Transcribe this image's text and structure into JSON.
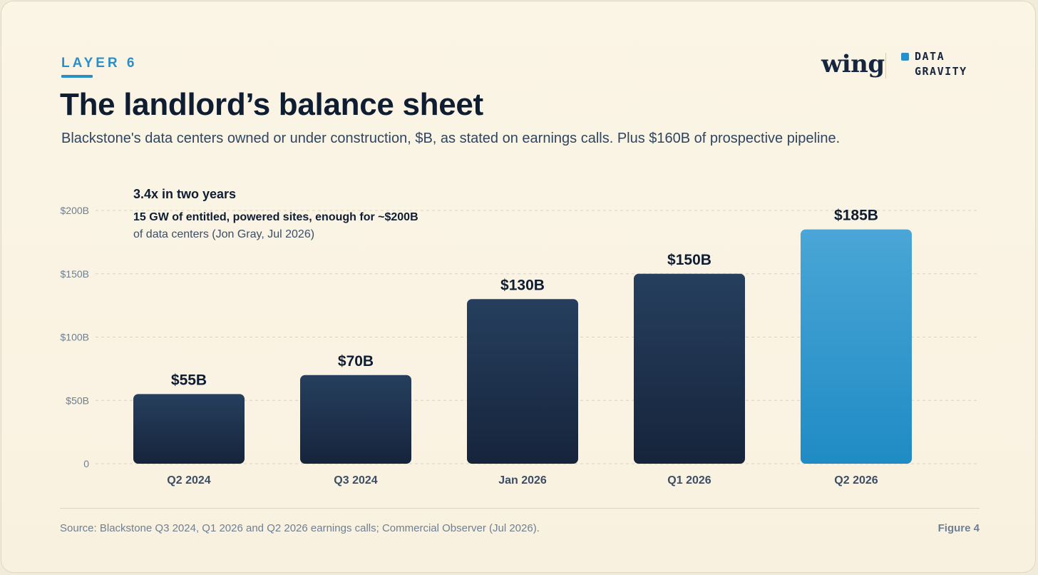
{
  "header": {
    "layer": "LAYER 6",
    "title": "The landlord’s balance sheet",
    "subtitle": "Blackstone's data centers owned or under construction, $B, as stated on earnings calls. Plus $160B of prospective pipeline."
  },
  "brand": {
    "wordmark": "wing",
    "tag_line1": "DATA",
    "tag_line2": "GRAVITY"
  },
  "annotation": {
    "headline": "3.4x in two years",
    "body_strong": "15 GW of entitled, powered sites, enough for ~$200B",
    "body_rest": "of data centers (Jon Gray, Jul 2026)"
  },
  "footer": {
    "source": "Source: Blackstone Q3 2024, Q1 2026 and Q2 2026 earnings calls; Commercial Observer (Jul 2026).",
    "figure": "Figure 4"
  },
  "colors": {
    "accent": "#2a8fc8",
    "bar_dark_top": "#263f5e",
    "bar_dark_bottom": "#16243b",
    "bar_highlight_top": "#4aa6d6",
    "bar_highlight_bottom": "#1f8bc4"
  },
  "chart_data": {
    "type": "bar",
    "categories": [
      "Q2 2024",
      "Q3 2024",
      "Jan 2026",
      "Q1 2026",
      "Q2 2026"
    ],
    "values": [
      55,
      70,
      130,
      150,
      185
    ],
    "value_labels": [
      "$55B",
      "$70B",
      "$130B",
      "$150B",
      "$185B"
    ],
    "highlighted_index": 4,
    "ylim": [
      0,
      200
    ],
    "yticks": [
      0,
      50,
      100,
      150,
      200
    ],
    "ytick_labels": [
      "0",
      "$50B",
      "$100B",
      "$150B",
      "$200B"
    ],
    "grid": true,
    "xlabel": "",
    "ylabel": ""
  }
}
